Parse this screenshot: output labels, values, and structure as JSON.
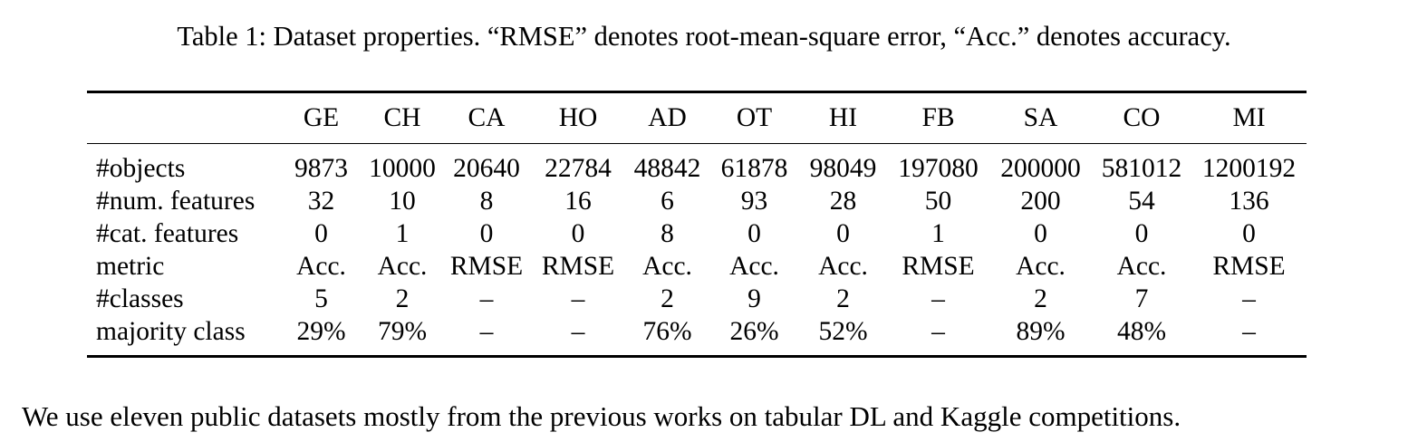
{
  "caption": "Table 1: Dataset properties. “RMSE” denotes root-mean-square error, “Acc.” denotes accuracy.",
  "table": {
    "columns": [
      "GE",
      "CH",
      "CA",
      "HO",
      "AD",
      "OT",
      "HI",
      "FB",
      "SA",
      "CO",
      "MI"
    ],
    "rows": [
      {
        "label": "#objects",
        "values": [
          "9873",
          "10000",
          "20640",
          "22784",
          "48842",
          "61878",
          "98049",
          "197080",
          "200000",
          "581012",
          "1200192"
        ]
      },
      {
        "label": "#num. features",
        "values": [
          "32",
          "10",
          "8",
          "16",
          "6",
          "93",
          "28",
          "50",
          "200",
          "54",
          "136"
        ]
      },
      {
        "label": "#cat. features",
        "values": [
          "0",
          "1",
          "0",
          "0",
          "8",
          "0",
          "0",
          "1",
          "0",
          "0",
          "0"
        ]
      },
      {
        "label": "metric",
        "values": [
          "Acc.",
          "Acc.",
          "RMSE",
          "RMSE",
          "Acc.",
          "Acc.",
          "Acc.",
          "RMSE",
          "Acc.",
          "Acc.",
          "RMSE"
        ]
      },
      {
        "label": "#classes",
        "values": [
          "5",
          "2",
          "–",
          "–",
          "2",
          "9",
          "2",
          "–",
          "2",
          "7",
          "–"
        ]
      },
      {
        "label": "majority class",
        "values": [
          "29%",
          "79%",
          "–",
          "–",
          "76%",
          "26%",
          "52%",
          "–",
          "89%",
          "48%",
          "–"
        ]
      }
    ]
  },
  "body_text": "We use eleven public datasets mostly from the previous works on tabular DL and Kaggle competitions."
}
